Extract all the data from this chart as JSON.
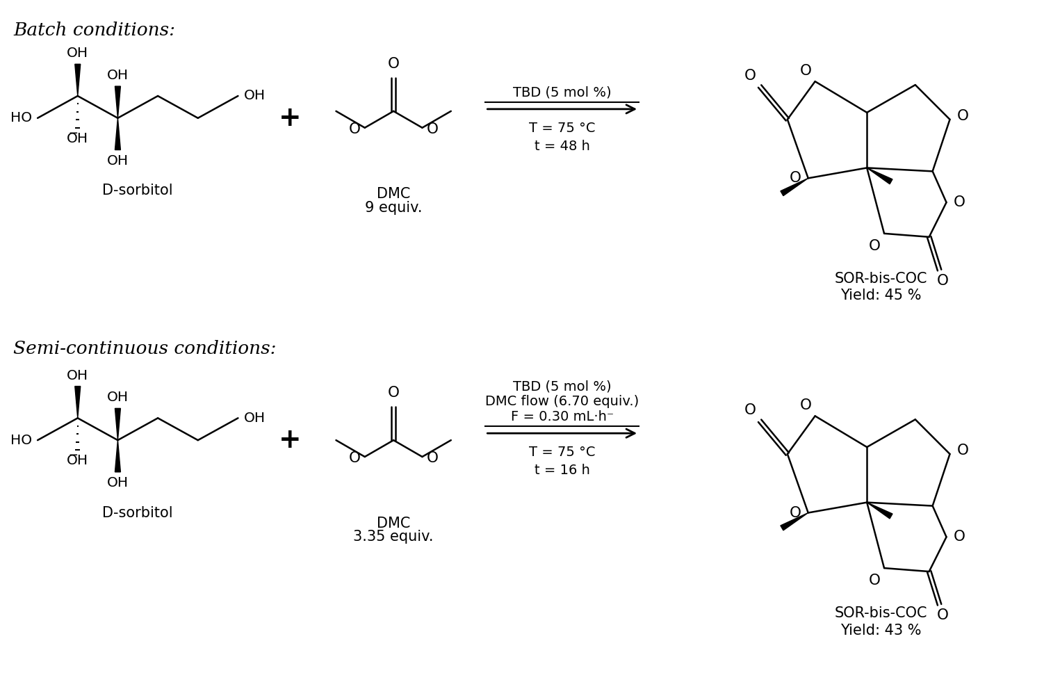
{
  "bg_color": "#ffffff",
  "fig_width": 15.25,
  "fig_height": 9.68,
  "batch_label": "Batch conditions:",
  "semi_label": "Semi-continuous conditions:",
  "dsorbitol_label": "D-sorbitol",
  "sor_bis_coc_label": "SOR-bis-COC",
  "yield1": "Yield: 45 %",
  "yield2": "Yield: 43 %",
  "batch_arrow_text1": "TBD (5 mol %)",
  "batch_arrow_text2": "T = 75 °C",
  "batch_arrow_text3": "t = 48 h",
  "semi_arrow_text1": "TBD (5 mol %)",
  "semi_arrow_text2": "DMC flow (6.70 equiv.)",
  "semi_arrow_text3": "F = 0.30 mL·h⁻",
  "semi_arrow_text4": "T = 75 °C",
  "semi_arrow_text5": "t = 16 h",
  "dmc1_label": "DMC",
  "dmc1_equiv": "9 equiv.",
  "dmc2_label": "DMC",
  "dmc2_equiv": "3.35 equiv.",
  "plus": "+"
}
